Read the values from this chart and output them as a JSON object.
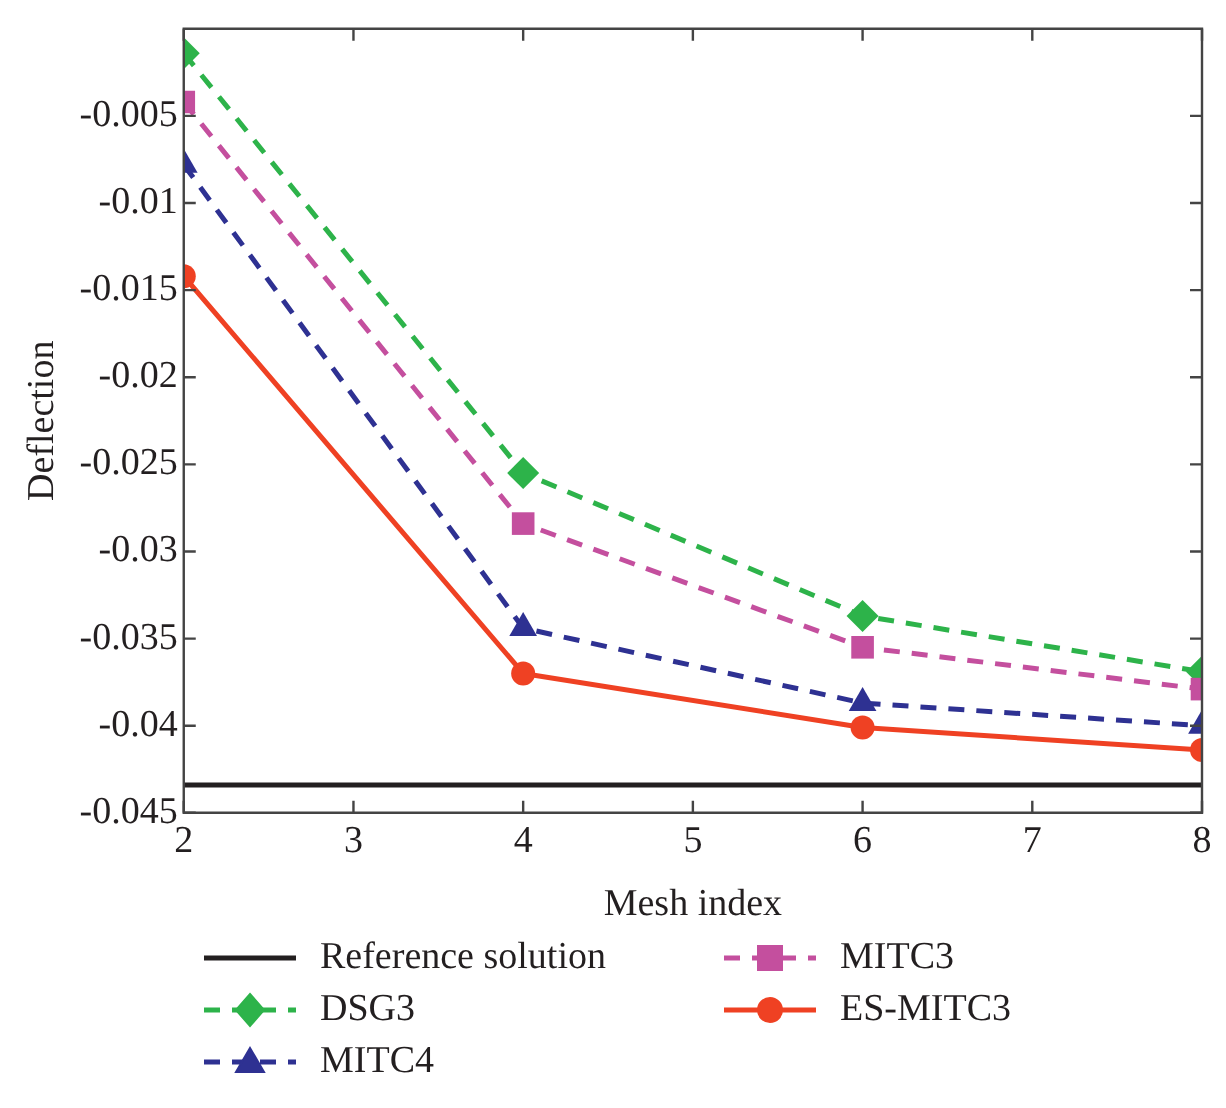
{
  "chart_data": {
    "type": "line",
    "xlabel": "Mesh index",
    "ylabel": "Deflection",
    "x": [
      2,
      4,
      6,
      8
    ],
    "xlim": [
      2,
      8
    ],
    "xticks": [
      2,
      3,
      4,
      5,
      6,
      7,
      8
    ],
    "ylim": [
      -0.045,
      0
    ],
    "yticks": [
      -0.045,
      -0.04,
      -0.035,
      -0.03,
      -0.025,
      -0.02,
      -0.015,
      -0.01,
      -0.005
    ],
    "grid": false,
    "legend": "bottom",
    "series": [
      {
        "name": "Reference solution",
        "color": "#231f20",
        "values": [
          -0.0434,
          -0.0434,
          -0.0434,
          -0.0434
        ],
        "marker": "none",
        "line_style": "solid"
      },
      {
        "name": "DSG3",
        "color": "#2db34a",
        "values": [
          -0.0014,
          -0.0255,
          -0.0337,
          -0.0369
        ],
        "marker": "diamond",
        "line_style": "dashed"
      },
      {
        "name": "MITC4",
        "color": "#2e3192",
        "values": [
          -0.0078,
          -0.0344,
          -0.0387,
          -0.04
        ],
        "marker": "triangle",
        "line_style": "dashed"
      },
      {
        "name": "MITC3",
        "color": "#c44f9e",
        "values": [
          -0.0042,
          -0.0284,
          -0.0355,
          -0.0379
        ],
        "marker": "square",
        "line_style": "dashed"
      },
      {
        "name": "ES-MITC3",
        "color": "#ef4123",
        "values": [
          -0.0142,
          -0.037,
          -0.0401,
          -0.0414
        ],
        "marker": "circle",
        "line_style": "solid"
      }
    ]
  }
}
